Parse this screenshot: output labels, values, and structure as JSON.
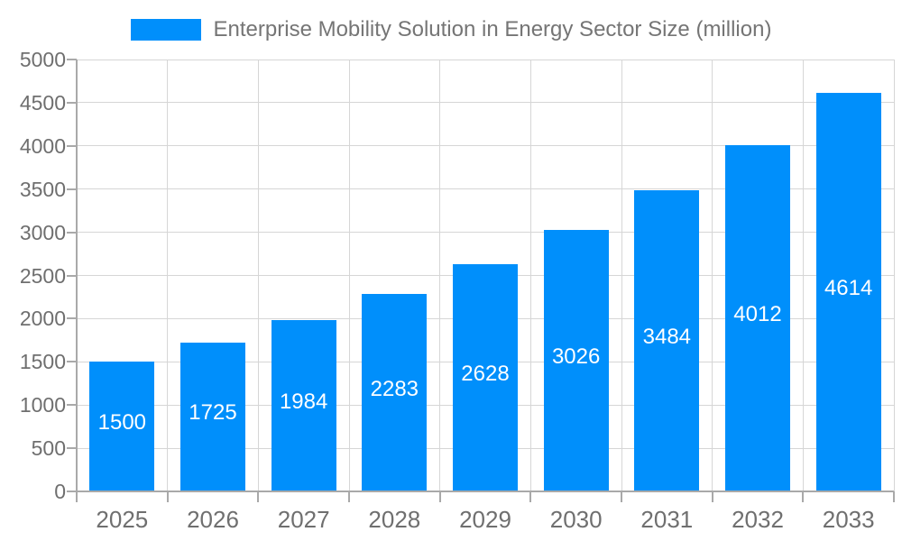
{
  "legend": {
    "label": "Enterprise Mobility Solution in Energy Sector Size (million)"
  },
  "chart_data": {
    "type": "bar",
    "title": "Enterprise Mobility Solution in Energy Sector Size (million)",
    "categories": [
      "2025",
      "2026",
      "2027",
      "2028",
      "2029",
      "2030",
      "2031",
      "2032",
      "2033"
    ],
    "values": [
      1500,
      1725,
      1984,
      2283,
      2628,
      3026,
      3484,
      4012,
      4614
    ],
    "bar_labels_shown": true,
    "xlabel": "",
    "ylabel": "",
    "ylim": [
      0,
      5000
    ],
    "yticks": [
      0,
      500,
      1000,
      1500,
      2000,
      2500,
      3000,
      3500,
      4000,
      4500,
      5000
    ],
    "grid": true,
    "legend_position": "top",
    "colors": {
      "bar": "#008FFB",
      "bar_label": "#FFFFFF",
      "grid": "#D6D6D6",
      "axis": "#A9A9A9",
      "tick_label": "#6F6F6F",
      "title": "#757575",
      "background": "#FFFFFF"
    }
  }
}
